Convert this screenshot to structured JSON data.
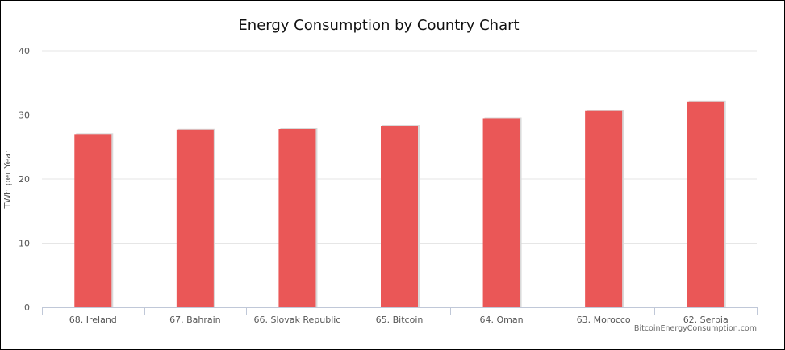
{
  "chart_data": {
    "type": "bar",
    "title": "Energy Consumption by Country Chart",
    "xlabel": "",
    "ylabel": "TWh per Year",
    "categories": [
      "68. Ireland",
      "67. Bahrain",
      "66. Slovak Republic",
      "65. Bitcoin",
      "64. Oman",
      "63. Morocco",
      "62. Serbia"
    ],
    "values": [
      27.0,
      27.7,
      27.8,
      28.3,
      29.5,
      30.6,
      32.1
    ],
    "ylim": [
      0,
      40
    ],
    "yticks": [
      0,
      10,
      20,
      30,
      40
    ],
    "grid": true,
    "legend": "none",
    "bar_color": "#ea5757"
  },
  "credit": "BitcoinEnergyConsumption.com"
}
